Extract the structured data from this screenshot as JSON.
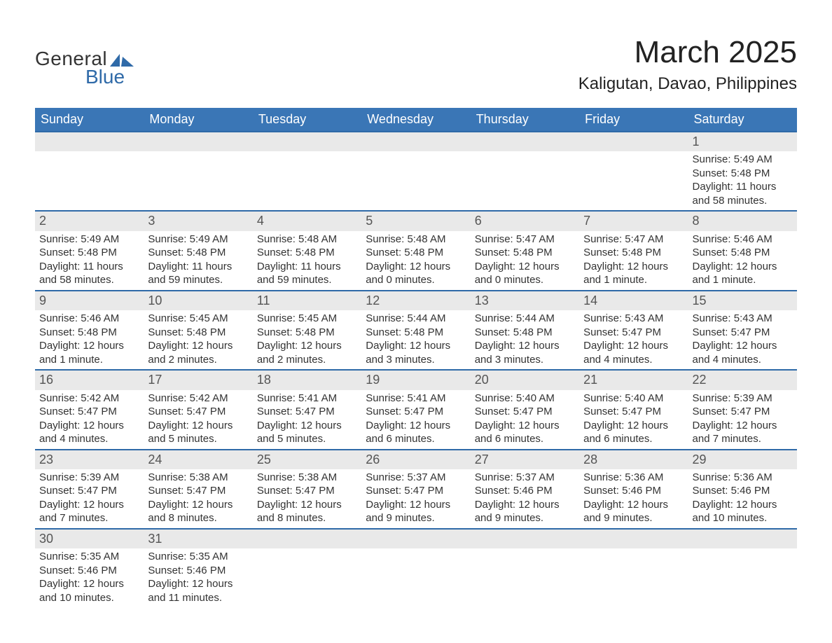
{
  "brand": {
    "general": "General",
    "blue": "Blue",
    "flag_color": "#2f6aa8"
  },
  "title": {
    "month": "March 2025",
    "location": "Kaligutan, Davao, Philippines"
  },
  "colors": {
    "header_bg": "#3a76b6",
    "header_text": "#ffffff",
    "row_border": "#2f6aa8",
    "daynum_bg": "#e9e9e9",
    "text": "#333333",
    "background": "#ffffff"
  },
  "typography": {
    "month_title_fontsize": 44,
    "location_fontsize": 24,
    "weekday_fontsize": 18,
    "daynum_fontsize": 18,
    "cell_fontsize": 15,
    "logo_fontsize": 28
  },
  "weekdays": [
    "Sunday",
    "Monday",
    "Tuesday",
    "Wednesday",
    "Thursday",
    "Friday",
    "Saturday"
  ],
  "weeks": [
    [
      null,
      null,
      null,
      null,
      null,
      null,
      {
        "day": "1",
        "sunrise": "Sunrise: 5:49 AM",
        "sunset": "Sunset: 5:48 PM",
        "daylight": "Daylight: 11 hours and 58 minutes."
      }
    ],
    [
      {
        "day": "2",
        "sunrise": "Sunrise: 5:49 AM",
        "sunset": "Sunset: 5:48 PM",
        "daylight": "Daylight: 11 hours and 58 minutes."
      },
      {
        "day": "3",
        "sunrise": "Sunrise: 5:49 AM",
        "sunset": "Sunset: 5:48 PM",
        "daylight": "Daylight: 11 hours and 59 minutes."
      },
      {
        "day": "4",
        "sunrise": "Sunrise: 5:48 AM",
        "sunset": "Sunset: 5:48 PM",
        "daylight": "Daylight: 11 hours and 59 minutes."
      },
      {
        "day": "5",
        "sunrise": "Sunrise: 5:48 AM",
        "sunset": "Sunset: 5:48 PM",
        "daylight": "Daylight: 12 hours and 0 minutes."
      },
      {
        "day": "6",
        "sunrise": "Sunrise: 5:47 AM",
        "sunset": "Sunset: 5:48 PM",
        "daylight": "Daylight: 12 hours and 0 minutes."
      },
      {
        "day": "7",
        "sunrise": "Sunrise: 5:47 AM",
        "sunset": "Sunset: 5:48 PM",
        "daylight": "Daylight: 12 hours and 1 minute."
      },
      {
        "day": "8",
        "sunrise": "Sunrise: 5:46 AM",
        "sunset": "Sunset: 5:48 PM",
        "daylight": "Daylight: 12 hours and 1 minute."
      }
    ],
    [
      {
        "day": "9",
        "sunrise": "Sunrise: 5:46 AM",
        "sunset": "Sunset: 5:48 PM",
        "daylight": "Daylight: 12 hours and 1 minute."
      },
      {
        "day": "10",
        "sunrise": "Sunrise: 5:45 AM",
        "sunset": "Sunset: 5:48 PM",
        "daylight": "Daylight: 12 hours and 2 minutes."
      },
      {
        "day": "11",
        "sunrise": "Sunrise: 5:45 AM",
        "sunset": "Sunset: 5:48 PM",
        "daylight": "Daylight: 12 hours and 2 minutes."
      },
      {
        "day": "12",
        "sunrise": "Sunrise: 5:44 AM",
        "sunset": "Sunset: 5:48 PM",
        "daylight": "Daylight: 12 hours and 3 minutes."
      },
      {
        "day": "13",
        "sunrise": "Sunrise: 5:44 AM",
        "sunset": "Sunset: 5:48 PM",
        "daylight": "Daylight: 12 hours and 3 minutes."
      },
      {
        "day": "14",
        "sunrise": "Sunrise: 5:43 AM",
        "sunset": "Sunset: 5:47 PM",
        "daylight": "Daylight: 12 hours and 4 minutes."
      },
      {
        "day": "15",
        "sunrise": "Sunrise: 5:43 AM",
        "sunset": "Sunset: 5:47 PM",
        "daylight": "Daylight: 12 hours and 4 minutes."
      }
    ],
    [
      {
        "day": "16",
        "sunrise": "Sunrise: 5:42 AM",
        "sunset": "Sunset: 5:47 PM",
        "daylight": "Daylight: 12 hours and 4 minutes."
      },
      {
        "day": "17",
        "sunrise": "Sunrise: 5:42 AM",
        "sunset": "Sunset: 5:47 PM",
        "daylight": "Daylight: 12 hours and 5 minutes."
      },
      {
        "day": "18",
        "sunrise": "Sunrise: 5:41 AM",
        "sunset": "Sunset: 5:47 PM",
        "daylight": "Daylight: 12 hours and 5 minutes."
      },
      {
        "day": "19",
        "sunrise": "Sunrise: 5:41 AM",
        "sunset": "Sunset: 5:47 PM",
        "daylight": "Daylight: 12 hours and 6 minutes."
      },
      {
        "day": "20",
        "sunrise": "Sunrise: 5:40 AM",
        "sunset": "Sunset: 5:47 PM",
        "daylight": "Daylight: 12 hours and 6 minutes."
      },
      {
        "day": "21",
        "sunrise": "Sunrise: 5:40 AM",
        "sunset": "Sunset: 5:47 PM",
        "daylight": "Daylight: 12 hours and 6 minutes."
      },
      {
        "day": "22",
        "sunrise": "Sunrise: 5:39 AM",
        "sunset": "Sunset: 5:47 PM",
        "daylight": "Daylight: 12 hours and 7 minutes."
      }
    ],
    [
      {
        "day": "23",
        "sunrise": "Sunrise: 5:39 AM",
        "sunset": "Sunset: 5:47 PM",
        "daylight": "Daylight: 12 hours and 7 minutes."
      },
      {
        "day": "24",
        "sunrise": "Sunrise: 5:38 AM",
        "sunset": "Sunset: 5:47 PM",
        "daylight": "Daylight: 12 hours and 8 minutes."
      },
      {
        "day": "25",
        "sunrise": "Sunrise: 5:38 AM",
        "sunset": "Sunset: 5:47 PM",
        "daylight": "Daylight: 12 hours and 8 minutes."
      },
      {
        "day": "26",
        "sunrise": "Sunrise: 5:37 AM",
        "sunset": "Sunset: 5:47 PM",
        "daylight": "Daylight: 12 hours and 9 minutes."
      },
      {
        "day": "27",
        "sunrise": "Sunrise: 5:37 AM",
        "sunset": "Sunset: 5:46 PM",
        "daylight": "Daylight: 12 hours and 9 minutes."
      },
      {
        "day": "28",
        "sunrise": "Sunrise: 5:36 AM",
        "sunset": "Sunset: 5:46 PM",
        "daylight": "Daylight: 12 hours and 9 minutes."
      },
      {
        "day": "29",
        "sunrise": "Sunrise: 5:36 AM",
        "sunset": "Sunset: 5:46 PM",
        "daylight": "Daylight: 12 hours and 10 minutes."
      }
    ],
    [
      {
        "day": "30",
        "sunrise": "Sunrise: 5:35 AM",
        "sunset": "Sunset: 5:46 PM",
        "daylight": "Daylight: 12 hours and 10 minutes."
      },
      {
        "day": "31",
        "sunrise": "Sunrise: 5:35 AM",
        "sunset": "Sunset: 5:46 PM",
        "daylight": "Daylight: 12 hours and 11 minutes."
      },
      null,
      null,
      null,
      null,
      null
    ]
  ]
}
